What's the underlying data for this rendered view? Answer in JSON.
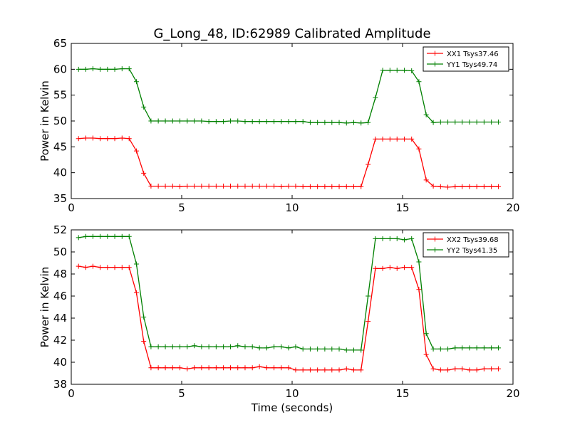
{
  "title": "G_Long_48, ID:62989 Calibrated Amplitude",
  "xlabel": "Time (seconds)",
  "colors": {
    "XX": "#ff0000",
    "YY": "#008000"
  },
  "chart_data": [
    {
      "type": "line",
      "ylabel": "Power in Kelvin",
      "xlim": [
        0,
        20
      ],
      "ylim": [
        35,
        65
      ],
      "xticks": [
        "0",
        "5",
        "10",
        "15",
        "20"
      ],
      "yticks": [
        "35",
        "40",
        "45",
        "50",
        "55",
        "60",
        "65"
      ],
      "legend": "top-right",
      "x": [
        0.33,
        0.66,
        0.98,
        1.31,
        1.64,
        1.97,
        2.3,
        2.62,
        2.95,
        3.28,
        3.61,
        3.94,
        4.26,
        4.59,
        4.92,
        5.25,
        5.57,
        5.9,
        6.23,
        6.56,
        6.89,
        7.21,
        7.54,
        7.87,
        8.2,
        8.52,
        8.85,
        9.18,
        9.51,
        9.84,
        10.16,
        10.49,
        10.82,
        11.15,
        11.48,
        11.8,
        12.13,
        12.46,
        12.79,
        13.12,
        13.44,
        13.77,
        14.1,
        14.43,
        14.75,
        15.08,
        15.41,
        15.74,
        16.07,
        16.39,
        16.72,
        17.05,
        17.38,
        17.7,
        18.03,
        18.36,
        18.69,
        19.02,
        19.34
      ],
      "series": [
        {
          "name": "XX1 Tsys37.46",
          "color": "#ff0000",
          "values": [
            46.6,
            46.7,
            46.7,
            46.6,
            46.6,
            46.6,
            46.7,
            46.6,
            44.2,
            39.9,
            37.4,
            37.4,
            37.4,
            37.4,
            37.3,
            37.4,
            37.4,
            37.4,
            37.4,
            37.4,
            37.4,
            37.4,
            37.4,
            37.4,
            37.4,
            37.4,
            37.4,
            37.4,
            37.3,
            37.4,
            37.4,
            37.3,
            37.3,
            37.3,
            37.3,
            37.3,
            37.3,
            37.3,
            37.3,
            37.3,
            41.6,
            46.5,
            46.5,
            46.5,
            46.5,
            46.5,
            46.5,
            44.6,
            38.6,
            37.4,
            37.3,
            37.2,
            37.3,
            37.3,
            37.3,
            37.3,
            37.3,
            37.3,
            37.3
          ]
        },
        {
          "name": "YY1 Tsys49.74",
          "color": "#008000",
          "values": [
            60.0,
            60.0,
            60.1,
            60.0,
            60.0,
            60.0,
            60.1,
            60.1,
            57.6,
            52.7,
            50.0,
            50.0,
            50.0,
            50.0,
            50.0,
            50.0,
            50.0,
            50.0,
            49.9,
            49.9,
            49.9,
            50.0,
            50.0,
            49.9,
            49.9,
            49.9,
            49.9,
            49.9,
            49.9,
            49.9,
            49.9,
            49.9,
            49.7,
            49.7,
            49.7,
            49.7,
            49.7,
            49.6,
            49.7,
            49.6,
            49.7,
            54.5,
            59.8,
            59.8,
            59.8,
            59.8,
            59.7,
            57.6,
            51.2,
            49.7,
            49.8,
            49.8,
            49.8,
            49.8,
            49.8,
            49.8,
            49.8,
            49.8,
            49.8
          ]
        }
      ]
    },
    {
      "type": "line",
      "ylabel": "Power in Kelvin",
      "xlim": [
        0,
        20
      ],
      "ylim": [
        38,
        52
      ],
      "xticks": [
        "0",
        "5",
        "10",
        "15",
        "20"
      ],
      "yticks": [
        "38",
        "40",
        "42",
        "44",
        "46",
        "48",
        "50",
        "52"
      ],
      "legend": "top-right",
      "x": [
        0.33,
        0.66,
        0.98,
        1.31,
        1.64,
        1.97,
        2.3,
        2.62,
        2.95,
        3.28,
        3.61,
        3.94,
        4.26,
        4.59,
        4.92,
        5.25,
        5.57,
        5.9,
        6.23,
        6.56,
        6.89,
        7.21,
        7.54,
        7.87,
        8.2,
        8.52,
        8.85,
        9.18,
        9.51,
        9.84,
        10.16,
        10.49,
        10.82,
        11.15,
        11.48,
        11.8,
        12.13,
        12.46,
        12.79,
        13.12,
        13.44,
        13.77,
        14.1,
        14.43,
        14.75,
        15.08,
        15.41,
        15.74,
        16.07,
        16.39,
        16.72,
        17.05,
        17.38,
        17.7,
        18.03,
        18.36,
        18.69,
        19.02,
        19.34
      ],
      "series": [
        {
          "name": "XX2 Tsys39.68",
          "color": "#ff0000",
          "values": [
            48.7,
            48.6,
            48.7,
            48.6,
            48.6,
            48.6,
            48.6,
            48.6,
            46.3,
            41.9,
            39.5,
            39.5,
            39.5,
            39.5,
            39.5,
            39.4,
            39.5,
            39.5,
            39.5,
            39.5,
            39.5,
            39.5,
            39.5,
            39.5,
            39.5,
            39.6,
            39.5,
            39.5,
            39.5,
            39.5,
            39.3,
            39.3,
            39.3,
            39.3,
            39.3,
            39.3,
            39.3,
            39.4,
            39.3,
            39.3,
            43.7,
            48.5,
            48.5,
            48.6,
            48.5,
            48.6,
            48.6,
            46.6,
            40.7,
            39.4,
            39.3,
            39.3,
            39.4,
            39.4,
            39.3,
            39.3,
            39.4,
            39.4,
            39.4
          ]
        },
        {
          "name": "YY2 Tsys41.35",
          "color": "#008000",
          "values": [
            51.3,
            51.4,
            51.4,
            51.4,
            51.4,
            51.4,
            51.4,
            51.4,
            48.9,
            44.1,
            41.4,
            41.4,
            41.4,
            41.4,
            41.4,
            41.4,
            41.5,
            41.4,
            41.4,
            41.4,
            41.4,
            41.4,
            41.5,
            41.4,
            41.4,
            41.3,
            41.3,
            41.4,
            41.4,
            41.3,
            41.4,
            41.2,
            41.2,
            41.2,
            41.2,
            41.2,
            41.2,
            41.1,
            41.1,
            41.1,
            46.0,
            51.2,
            51.2,
            51.2,
            51.2,
            51.1,
            51.2,
            49.1,
            42.6,
            41.2,
            41.2,
            41.2,
            41.3,
            41.3,
            41.3,
            41.3,
            41.3,
            41.3,
            41.3
          ]
        }
      ]
    }
  ]
}
